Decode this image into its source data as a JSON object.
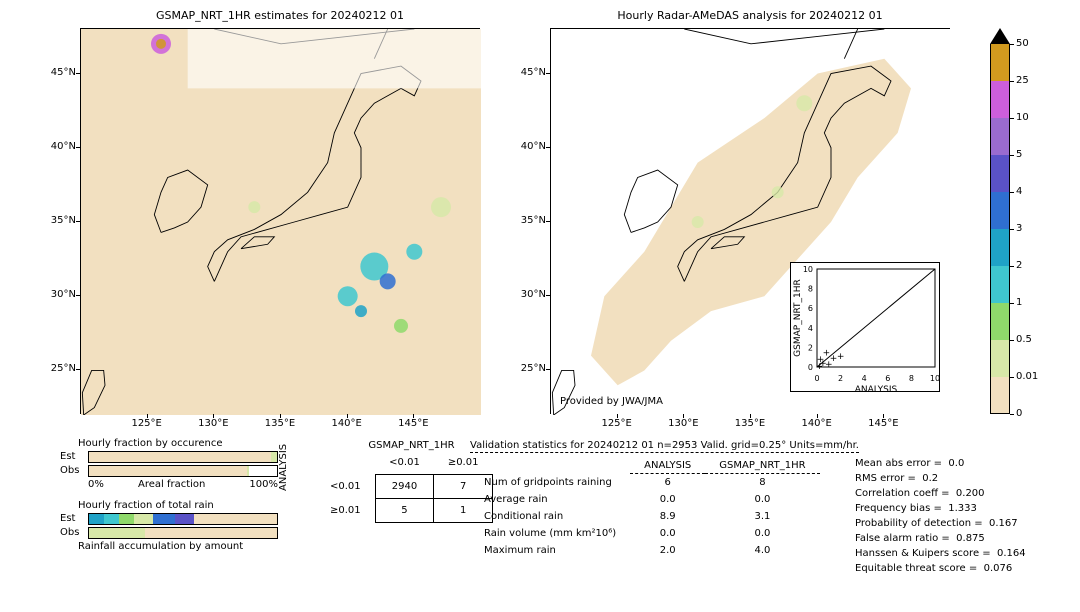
{
  "date": "20240212 01",
  "panels": {
    "left": {
      "title": "GSMAP_NRT_1HR estimates for 20240212 01",
      "x_ticks": [
        "125°E",
        "130°E",
        "135°E",
        "140°E",
        "145°E"
      ],
      "y_ticks": [
        "25°N",
        "30°N",
        "35°N",
        "40°N",
        "45°N"
      ],
      "xlim": [
        120,
        150
      ],
      "ylim": [
        22,
        48
      ],
      "bg_color": "#f2e0c0"
    },
    "right": {
      "title": "Hourly Radar-AMeDAS analysis for 20240212 01",
      "x_ticks": [
        "125°E",
        "130°E",
        "135°E",
        "140°E",
        "145°E"
      ],
      "y_ticks": [
        "25°N",
        "30°N",
        "35°N",
        "40°N",
        "45°N"
      ],
      "xlim": [
        120,
        150
      ],
      "ylim": [
        22,
        48
      ],
      "bg_color": "#ffffff",
      "attribution": "Provided by JWA/JMA"
    }
  },
  "colorbar": {
    "levels": [
      "0",
      "0.01",
      "0.5",
      "1",
      "2",
      "3",
      "4",
      "5",
      "10",
      "25",
      "50"
    ],
    "colors": [
      "#f2e0c0",
      "#d7e8a8",
      "#8fd96b",
      "#3fc7cf",
      "#1fa2c7",
      "#2f6fd1",
      "#5a52c7",
      "#9a6bcf",
      "#cc5edc",
      "#d19a1f"
    ],
    "over_color": "#000000"
  },
  "scatter": {
    "xlabel": "ANALYSIS",
    "ylabel": "GSMAP_NRT_1HR",
    "xlim": [
      0,
      10
    ],
    "ylim": [
      0,
      10
    ],
    "ticks": [
      0,
      2,
      4,
      6,
      8,
      10
    ],
    "points": [
      [
        0.2,
        0.1
      ],
      [
        0.5,
        0.4
      ],
      [
        1.0,
        0.3
      ],
      [
        1.4,
        0.9
      ],
      [
        2.0,
        1.1
      ],
      [
        0.8,
        1.5
      ],
      [
        0.3,
        0.8
      ]
    ]
  },
  "occurrence": {
    "title": "Hourly fraction by occurence",
    "xlabel": "Areal fraction",
    "x_ticks": [
      "0%",
      "100%"
    ],
    "rows": {
      "Est": {
        "main": 97,
        "tail": 3
      },
      "Obs": {
        "main": 84,
        "tail": 1
      }
    },
    "main_color": "#f2e0c0",
    "tail_color": "#d7e8a8"
  },
  "rain_fraction": {
    "title": "Hourly fraction of total rain",
    "Est_segments": [
      {
        "w": 8,
        "c": "#1fa2c7"
      },
      {
        "w": 8,
        "c": "#3fc7cf"
      },
      {
        "w": 8,
        "c": "#8fd96b"
      },
      {
        "w": 10,
        "c": "#d7e8a8"
      },
      {
        "w": 12,
        "c": "#2f6fd1"
      },
      {
        "w": 10,
        "c": "#5a52c7"
      },
      {
        "w": 44,
        "c": "#f2e0c0"
      }
    ],
    "Obs_segments": [
      {
        "w": 30,
        "c": "#d7e8a8"
      },
      {
        "w": 70,
        "c": "#f2e0c0"
      }
    ],
    "footer": "Rainfall accumulation by amount"
  },
  "contingency": {
    "col_header": "GSMAP_NRT_1HR",
    "row_header": "ANALYSIS",
    "col_labels": [
      "<0.01",
      "≥0.01"
    ],
    "row_labels": [
      "<0.01",
      "≥0.01"
    ],
    "cells": [
      [
        2940,
        7
      ],
      [
        5,
        1
      ]
    ]
  },
  "table": {
    "headers": [
      "",
      "ANALYSIS",
      "GSMAP_NRT_1HR"
    ],
    "rows": [
      [
        "Num of gridpoints raining",
        "6",
        "8"
      ],
      [
        "Average rain",
        "0.0",
        "0.0"
      ],
      [
        "Conditional rain",
        "8.9",
        "3.1"
      ],
      [
        "Rain volume (mm km²10⁶)",
        "0.0",
        "0.0"
      ],
      [
        "Maximum rain",
        "2.0",
        "4.0"
      ]
    ]
  },
  "stats": {
    "header": "Validation statistics for 20240212 01  n=2953 Valid. grid=0.25°  Units=mm/hr.",
    "items": [
      [
        "Mean abs error =",
        "0.0"
      ],
      [
        "RMS error =",
        "0.2"
      ],
      [
        "Correlation coeff =",
        "0.200"
      ],
      [
        "Frequency bias =",
        "1.333"
      ],
      [
        "Probability of detection =",
        "0.167"
      ],
      [
        "False alarm ratio =",
        "0.875"
      ],
      [
        "Hanssen & Kuipers score =",
        "0.164"
      ],
      [
        "Equitable threat score =",
        "0.076"
      ]
    ]
  }
}
